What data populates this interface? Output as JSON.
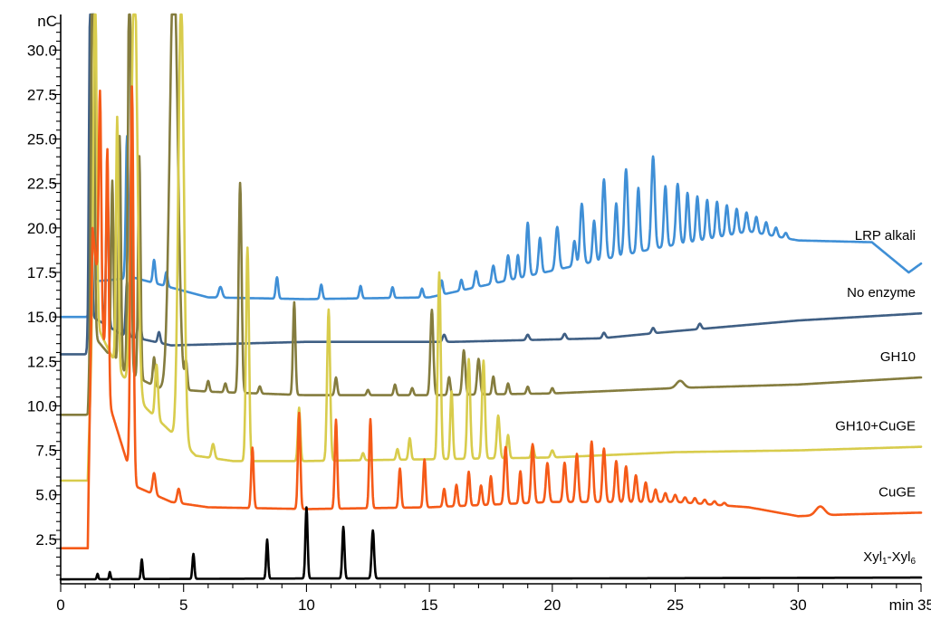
{
  "chart_data": {
    "type": "line",
    "xlabel": "min",
    "ylabel": "nC",
    "xlim": [
      0,
      35
    ],
    "ylim": [
      0,
      32
    ],
    "x_ticks": [
      0,
      5,
      10,
      15,
      20,
      25,
      30,
      35
    ],
    "x_tick_labels": [
      "0",
      "5",
      "10",
      "15",
      "20",
      "25",
      "30",
      "35"
    ],
    "y_ticks": [
      2.5,
      5.0,
      7.5,
      10.0,
      12.5,
      15.0,
      17.5,
      20.0,
      22.5,
      25.0,
      27.5,
      30.0
    ],
    "y_tick_labels": [
      "2.5",
      "5.0",
      "7.5",
      "10.0",
      "12.5",
      "15.0",
      "17.5",
      "20.0",
      "22.5",
      "25.0",
      "27.5",
      "30.0"
    ],
    "grid": false,
    "legend": "labels at right end of each trace",
    "series": [
      {
        "name": "LRP alkali",
        "color": "#3f8fd6",
        "label": {
          "text": "LRP alkali",
          "main": "LRP alkali",
          "sub1": "",
          "mid": "",
          "sub2": ""
        },
        "baseline": [
          [
            0,
            15.0
          ],
          [
            1.1,
            15.0
          ],
          [
            1.4,
            17.0
          ],
          [
            3,
            17.2
          ],
          [
            6,
            16.1
          ],
          [
            10,
            16.0
          ],
          [
            15,
            16.1
          ],
          [
            18,
            17.0
          ],
          [
            20,
            17.6
          ],
          [
            24,
            18.8
          ],
          [
            28,
            19.8
          ],
          [
            30,
            19.3
          ],
          [
            33,
            19.2
          ],
          [
            34.5,
            17.5
          ],
          [
            35,
            18.0
          ]
        ],
        "peaks": [
          [
            1.3,
            32.0,
            0.06
          ],
          [
            2.7,
            8.0,
            0.05
          ],
          [
            3.8,
            1.3,
            0.05
          ],
          [
            4.3,
            0.8,
            0.05
          ],
          [
            6.5,
            0.6,
            0.07
          ],
          [
            8.8,
            1.2,
            0.05
          ],
          [
            10.6,
            0.8,
            0.05
          ],
          [
            12.2,
            0.7,
            0.05
          ],
          [
            13.5,
            0.6,
            0.05
          ],
          [
            14.7,
            0.5,
            0.05
          ],
          [
            15.5,
            0.8,
            0.05
          ],
          [
            16.3,
            0.6,
            0.05
          ],
          [
            16.9,
            0.9,
            0.06
          ],
          [
            17.6,
            1.0,
            0.06
          ],
          [
            18.2,
            1.4,
            0.06
          ],
          [
            18.6,
            1.3,
            0.05
          ],
          [
            19.0,
            3.0,
            0.06
          ],
          [
            19.5,
            2.0,
            0.06
          ],
          [
            20.2,
            2.4,
            0.07
          ],
          [
            20.9,
            1.4,
            0.06
          ],
          [
            21.2,
            3.4,
            0.07
          ],
          [
            21.7,
            2.3,
            0.06
          ],
          [
            22.1,
            4.5,
            0.07
          ],
          [
            22.6,
            3.0,
            0.06
          ],
          [
            23.0,
            4.8,
            0.07
          ],
          [
            23.5,
            3.6,
            0.06
          ],
          [
            24.1,
            5.2,
            0.07
          ],
          [
            24.6,
            3.4,
            0.06
          ],
          [
            25.1,
            3.4,
            0.07
          ],
          [
            25.5,
            2.8,
            0.06
          ],
          [
            25.9,
            2.5,
            0.06
          ],
          [
            26.3,
            2.2,
            0.06
          ],
          [
            26.7,
            2.0,
            0.06
          ],
          [
            27.1,
            1.7,
            0.06
          ],
          [
            27.5,
            1.4,
            0.06
          ],
          [
            27.9,
            1.1,
            0.06
          ],
          [
            28.3,
            0.9,
            0.06
          ],
          [
            28.7,
            0.7,
            0.06
          ],
          [
            29.1,
            0.5,
            0.06
          ],
          [
            29.5,
            0.3,
            0.06
          ]
        ]
      },
      {
        "name": "No enzyme",
        "color": "#3f5f84",
        "label": {
          "text": "No enzyme",
          "main": "No enzyme",
          "sub1": "",
          "mid": "",
          "sub2": ""
        },
        "baseline": [
          [
            0,
            12.9
          ],
          [
            1.1,
            12.9
          ],
          [
            1.3,
            15.0
          ],
          [
            2.5,
            14.0
          ],
          [
            4.5,
            13.4
          ],
          [
            10,
            13.6
          ],
          [
            16,
            13.6
          ],
          [
            22,
            13.8
          ],
          [
            25,
            14.2
          ],
          [
            30,
            14.8
          ],
          [
            35,
            15.2
          ]
        ],
        "peaks": [
          [
            1.2,
            19.0,
            0.05
          ],
          [
            1.9,
            8.0,
            0.05
          ],
          [
            2.7,
            3.0,
            0.05
          ],
          [
            3.2,
            2.0,
            0.05
          ],
          [
            4.0,
            0.6,
            0.05
          ],
          [
            15.6,
            0.4,
            0.06
          ],
          [
            19.0,
            0.3,
            0.06
          ],
          [
            20.5,
            0.3,
            0.06
          ],
          [
            22.1,
            0.3,
            0.06
          ],
          [
            24.1,
            0.3,
            0.06
          ],
          [
            26.0,
            0.3,
            0.06
          ]
        ]
      },
      {
        "name": "GH10",
        "color": "#847c3e",
        "label": {
          "text": "GH10",
          "main": "GH10",
          "sub1": "",
          "mid": "",
          "sub2": ""
        },
        "baseline": [
          [
            0,
            9.5
          ],
          [
            1.1,
            9.5
          ],
          [
            1.3,
            14.0
          ],
          [
            2.5,
            12.0
          ],
          [
            4.0,
            11.0
          ],
          [
            6,
            10.8
          ],
          [
            10,
            10.6
          ],
          [
            15,
            10.6
          ],
          [
            20,
            10.7
          ],
          [
            25,
            11.0
          ],
          [
            30,
            11.2
          ],
          [
            35,
            11.6
          ]
        ],
        "peaks": [
          [
            1.3,
            24.0,
            0.06
          ],
          [
            2.1,
            10.0,
            0.05
          ],
          [
            2.4,
            13.0,
            0.05
          ],
          [
            2.8,
            24.0,
            0.06
          ],
          [
            3.2,
            12.5,
            0.05
          ],
          [
            3.8,
            1.6,
            0.05
          ],
          [
            4.6,
            24.0,
            0.16
          ],
          [
            5.1,
            1.5,
            0.05
          ],
          [
            6.0,
            0.6,
            0.05
          ],
          [
            6.7,
            0.5,
            0.05
          ],
          [
            7.3,
            11.8,
            0.06
          ],
          [
            8.1,
            0.4,
            0.05
          ],
          [
            9.5,
            5.2,
            0.05
          ],
          [
            11.2,
            1.0,
            0.05
          ],
          [
            12.5,
            0.3,
            0.05
          ],
          [
            13.6,
            0.6,
            0.05
          ],
          [
            14.3,
            0.4,
            0.05
          ],
          [
            15.1,
            4.8,
            0.06
          ],
          [
            15.8,
            1.0,
            0.05
          ],
          [
            16.4,
            2.5,
            0.06
          ],
          [
            17.0,
            2.0,
            0.06
          ],
          [
            17.6,
            1.0,
            0.05
          ],
          [
            18.2,
            0.6,
            0.05
          ],
          [
            19.0,
            0.4,
            0.05
          ],
          [
            20.0,
            0.3,
            0.05
          ],
          [
            25.2,
            0.4,
            0.15
          ]
        ]
      },
      {
        "name": "GH10+CuGE",
        "color": "#d8cc4c",
        "label": {
          "text": "GH10+CuGE",
          "main": "GH10+CuGE",
          "sub1": "",
          "mid": "",
          "sub2": ""
        },
        "baseline": [
          [
            0,
            5.8
          ],
          [
            1.1,
            5.8
          ],
          [
            1.3,
            15.0
          ],
          [
            2.0,
            13.0
          ],
          [
            3.0,
            10.5
          ],
          [
            5.5,
            7.2
          ],
          [
            7,
            6.9
          ],
          [
            10,
            6.9
          ],
          [
            15,
            7.0
          ],
          [
            20,
            7.1
          ],
          [
            25,
            7.4
          ],
          [
            30,
            7.5
          ],
          [
            35,
            7.7
          ]
        ],
        "peaks": [
          [
            1.4,
            20.0,
            0.06
          ],
          [
            2.3,
            14.0,
            0.05
          ],
          [
            3.0,
            24.0,
            0.12
          ],
          [
            3.9,
            3.0,
            0.06
          ],
          [
            4.9,
            25.0,
            0.11
          ],
          [
            6.2,
            0.8,
            0.06
          ],
          [
            7.6,
            12.0,
            0.06
          ],
          [
            9.7,
            3.0,
            0.05
          ],
          [
            10.9,
            8.5,
            0.06
          ],
          [
            12.3,
            0.4,
            0.05
          ],
          [
            13.7,
            0.6,
            0.05
          ],
          [
            14.2,
            1.2,
            0.05
          ],
          [
            15.4,
            10.5,
            0.06
          ],
          [
            15.9,
            3.8,
            0.05
          ],
          [
            16.6,
            5.6,
            0.06
          ],
          [
            17.2,
            5.5,
            0.06
          ],
          [
            17.8,
            2.4,
            0.06
          ],
          [
            18.2,
            1.3,
            0.05
          ],
          [
            19.2,
            0.7,
            0.05
          ],
          [
            20.0,
            0.4,
            0.06
          ]
        ]
      },
      {
        "name": "CuGE",
        "color": "#f55a18",
        "label": {
          "text": "CuGE",
          "main": "CuGE",
          "sub1": "",
          "mid": "",
          "sub2": ""
        },
        "baseline": [
          [
            0,
            2.0
          ],
          [
            1.1,
            2.0
          ],
          [
            1.3,
            20.0
          ],
          [
            2.0,
            10.0
          ],
          [
            3.0,
            5.5
          ],
          [
            4.5,
            4.6
          ],
          [
            6,
            4.3
          ],
          [
            10,
            4.2
          ],
          [
            15,
            4.3
          ],
          [
            20,
            4.6
          ],
          [
            25,
            4.6
          ],
          [
            28,
            4.3
          ],
          [
            30,
            3.8
          ],
          [
            32,
            3.9
          ],
          [
            35,
            4.0
          ]
        ],
        "peaks": [
          [
            1.6,
            12.0,
            0.05
          ],
          [
            1.9,
            13.0,
            0.05
          ],
          [
            2.9,
            22.0,
            0.06
          ],
          [
            3.8,
            1.2,
            0.06
          ],
          [
            4.8,
            0.8,
            0.06
          ],
          [
            7.8,
            3.4,
            0.05
          ],
          [
            9.7,
            5.4,
            0.05
          ],
          [
            11.2,
            5.0,
            0.05
          ],
          [
            12.6,
            5.0,
            0.05
          ],
          [
            13.8,
            2.2,
            0.05
          ],
          [
            14.8,
            2.7,
            0.05
          ],
          [
            15.6,
            1.0,
            0.05
          ],
          [
            16.1,
            1.2,
            0.05
          ],
          [
            16.6,
            1.9,
            0.05
          ],
          [
            17.1,
            1.1,
            0.05
          ],
          [
            17.5,
            1.6,
            0.05
          ],
          [
            18.1,
            3.2,
            0.06
          ],
          [
            18.7,
            1.8,
            0.05
          ],
          [
            19.2,
            3.3,
            0.06
          ],
          [
            19.8,
            2.2,
            0.06
          ],
          [
            20.5,
            2.2,
            0.06
          ],
          [
            21.0,
            2.7,
            0.06
          ],
          [
            21.6,
            3.4,
            0.06
          ],
          [
            22.1,
            3.0,
            0.06
          ],
          [
            22.6,
            2.3,
            0.06
          ],
          [
            23.0,
            2.0,
            0.06
          ],
          [
            23.4,
            1.5,
            0.06
          ],
          [
            23.8,
            1.1,
            0.06
          ],
          [
            24.2,
            0.7,
            0.06
          ],
          [
            24.6,
            0.5,
            0.06
          ],
          [
            25.0,
            0.4,
            0.06
          ],
          [
            25.4,
            0.3,
            0.06
          ],
          [
            25.8,
            0.3,
            0.06
          ],
          [
            26.2,
            0.25,
            0.06
          ],
          [
            26.6,
            0.2,
            0.06
          ],
          [
            27.0,
            0.15,
            0.06
          ],
          [
            30.9,
            0.5,
            0.18
          ]
        ]
      },
      {
        "name": "Xyl1-Xyl6",
        "color": "#000000",
        "label": {
          "text": "Xyl1-Xyl6",
          "main": "Xyl",
          "sub1": "1",
          "mid": "-Xyl",
          "sub2": "6"
        },
        "baseline": [
          [
            0,
            0.25
          ],
          [
            10,
            0.3
          ],
          [
            20,
            0.3
          ],
          [
            35,
            0.35
          ]
        ],
        "peaks": [
          [
            1.5,
            0.3,
            0.03
          ],
          [
            2.0,
            0.4,
            0.03
          ],
          [
            3.3,
            1.1,
            0.035
          ],
          [
            5.4,
            1.4,
            0.04
          ],
          [
            8.4,
            2.2,
            0.04
          ],
          [
            10.0,
            4.0,
            0.045
          ],
          [
            11.5,
            2.9,
            0.045
          ],
          [
            12.7,
            2.7,
            0.05
          ]
        ]
      }
    ]
  }
}
